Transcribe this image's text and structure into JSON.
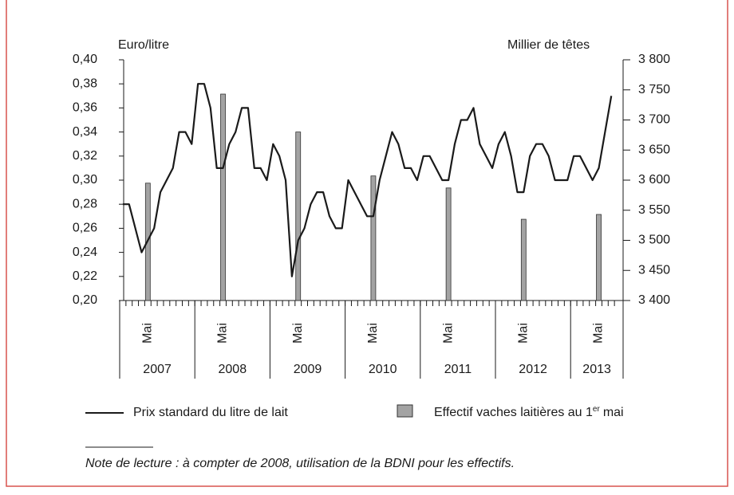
{
  "chart_data": {
    "type": "line_bar",
    "y_label": "Euro/litre",
    "y2_label": "Millier de têtes",
    "categories": [
      null,
      null,
      null,
      null,
      "Mai",
      null,
      null,
      null,
      null,
      null,
      null,
      null,
      null,
      null,
      null,
      null,
      "Mai",
      null,
      null,
      null,
      null,
      null,
      null,
      null,
      null,
      null,
      null,
      null,
      "Mai",
      null,
      null,
      null,
      null,
      null,
      null,
      null,
      null,
      null,
      null,
      null,
      "Mai",
      null,
      null,
      null,
      null,
      null,
      null,
      null,
      null,
      null,
      null,
      null,
      "Mai",
      null,
      null,
      null,
      null,
      null,
      null,
      null,
      null,
      null,
      null,
      null,
      "Mai",
      null,
      null,
      null,
      null,
      null,
      null,
      null,
      null,
      null,
      null,
      null,
      "Mai",
      null,
      null
    ],
    "year_labels": [
      "2007",
      "2008",
      "2009",
      "2010",
      "2011",
      "2012",
      "2013"
    ],
    "series": [
      {
        "name": "Prix standard du litre de lait",
        "type": "line",
        "color": "#1a1a1a",
        "values": [
          0.28,
          0.28,
          0.26,
          0.24,
          0.25,
          0.26,
          0.29,
          0.3,
          0.31,
          0.34,
          0.34,
          0.33,
          0.38,
          0.38,
          0.36,
          0.31,
          0.31,
          0.33,
          0.34,
          0.36,
          0.36,
          0.31,
          0.31,
          0.3,
          0.33,
          0.32,
          0.3,
          0.22,
          0.25,
          0.26,
          0.28,
          0.29,
          0.29,
          0.27,
          0.26,
          0.26,
          0.3,
          0.29,
          0.28,
          0.27,
          0.27,
          0.3,
          0.32,
          0.34,
          0.33,
          0.31,
          0.31,
          0.3,
          0.32,
          0.32,
          0.31,
          0.3,
          0.3,
          0.33,
          0.35,
          0.35,
          0.36,
          0.33,
          0.32,
          0.31,
          0.33,
          0.34,
          0.32,
          0.29,
          0.29,
          0.32,
          0.33,
          0.33,
          0.32,
          0.3,
          0.3,
          0.3,
          0.32,
          0.32,
          0.31,
          0.3,
          0.31,
          0.34,
          0.37
        ]
      },
      {
        "name": "Effectif vaches laitières au 1",
        "name_sup": "er",
        "name_tail": "mai",
        "type": "bar",
        "axis": "y2",
        "color": "#a3a3a3",
        "values": [
          null,
          null,
          null,
          null,
          3595,
          null,
          null,
          null,
          null,
          null,
          null,
          null,
          null,
          null,
          null,
          null,
          3743,
          null,
          null,
          null,
          null,
          null,
          null,
          null,
          null,
          null,
          null,
          null,
          3680,
          null,
          null,
          null,
          null,
          null,
          null,
          null,
          null,
          null,
          null,
          null,
          3607,
          null,
          null,
          null,
          null,
          null,
          null,
          null,
          null,
          null,
          null,
          null,
          3587,
          null,
          null,
          null,
          null,
          null,
          null,
          null,
          null,
          null,
          null,
          null,
          3535,
          null,
          null,
          null,
          null,
          null,
          null,
          null,
          null,
          null,
          null,
          null,
          3543,
          null,
          null
        ]
      }
    ],
    "ylim": [
      0.2,
      0.4
    ],
    "yticks": [
      {
        "value": 0.2,
        "label": "0,20"
      },
      {
        "value": 0.22,
        "label": "0,22"
      },
      {
        "value": 0.24,
        "label": "0,24"
      },
      {
        "value": 0.26,
        "label": "0,26"
      },
      {
        "value": 0.28,
        "label": "0,28"
      },
      {
        "value": 0.3,
        "label": "0,30"
      },
      {
        "value": 0.32,
        "label": "0,32"
      },
      {
        "value": 0.34,
        "label": "0,34"
      },
      {
        "value": 0.36,
        "label": "0,36"
      },
      {
        "value": 0.38,
        "label": "0,38"
      },
      {
        "value": 0.4,
        "label": "0,40"
      }
    ],
    "y2lim": [
      3400,
      3800
    ],
    "y2ticks": [
      {
        "value": 3400,
        "label": "3 400"
      },
      {
        "value": 3450,
        "label": "3 450"
      },
      {
        "value": 3500,
        "label": "3 500"
      },
      {
        "value": 3550,
        "label": "3 550"
      },
      {
        "value": 3600,
        "label": "3 600"
      },
      {
        "value": 3650,
        "label": "3 650"
      },
      {
        "value": 3700,
        "label": "3 700"
      },
      {
        "value": 3750,
        "label": "3 750"
      },
      {
        "value": 3800,
        "label": "3 800"
      }
    ],
    "note": "Note de lecture : à compter de 2008, utilisation de la BDNI pour les effectifs."
  }
}
